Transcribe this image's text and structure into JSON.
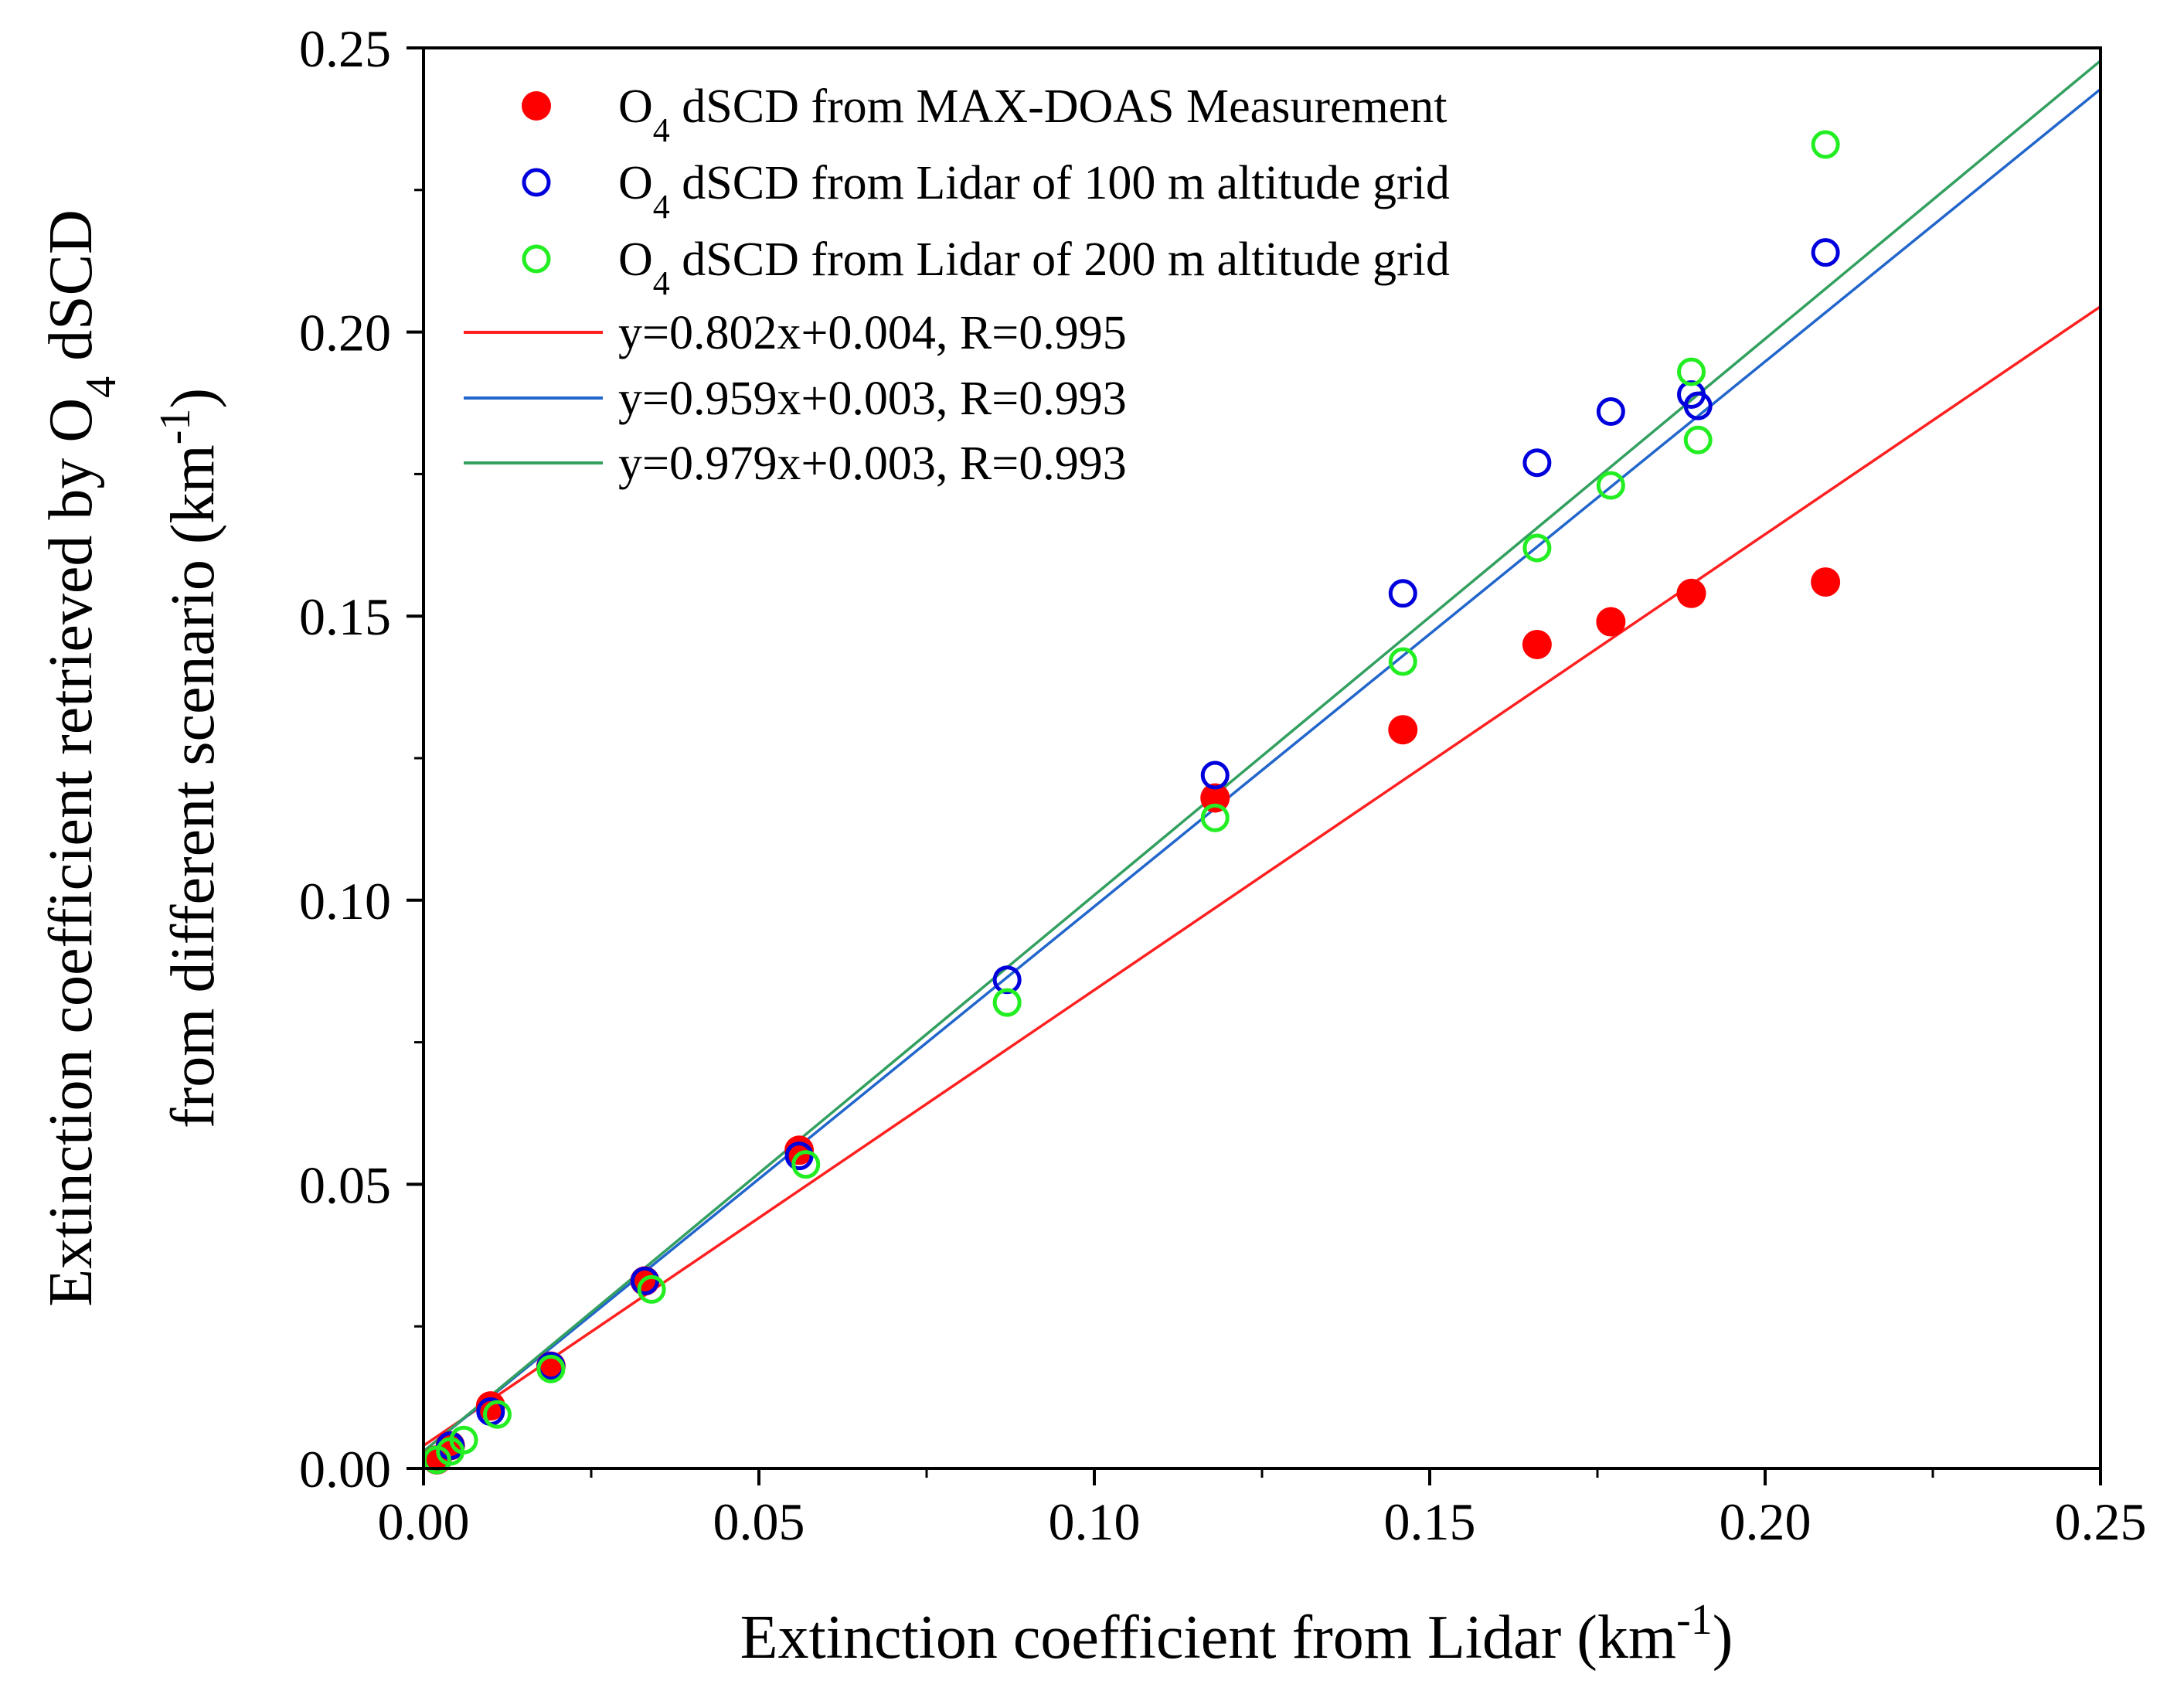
{
  "chart_data": {
    "type": "scatter",
    "title": "",
    "xlabel": {
      "main": "Extinction coefficient  from Lidar (km",
      "sup": "-1",
      "end": ")"
    },
    "ylabel": {
      "line1_main": "Extinction coefficient retrieved by O",
      "line1_sub": "4",
      "line1_end": " dSCD",
      "line2_main": "from different scenario (km",
      "line2_sup": "-1",
      "line2_end": ")"
    },
    "xlim": [
      0.0,
      0.25
    ],
    "ylim": [
      0.0,
      0.25
    ],
    "xticks": [
      "0.00",
      "0.05",
      "0.10",
      "0.15",
      "0.20",
      "0.25"
    ],
    "yticks": [
      "0.00",
      "0.05",
      "0.10",
      "0.15",
      "0.20",
      "0.25"
    ],
    "series": [
      {
        "name": "O4 dSCD from MAX-DOAS Measurement",
        "legend": {
          "prefix": "O",
          "sub": "4",
          "rest": " dSCD from MAX-DOAS Measurement"
        },
        "marker": "filled-circle",
        "color": "#ff0000",
        "x": [
          0.002,
          0.004,
          0.01,
          0.019,
          0.033,
          0.056,
          0.118,
          0.146,
          0.166,
          0.177,
          0.189,
          0.209
        ],
        "y": [
          0.0015,
          0.004,
          0.011,
          0.018,
          0.033,
          0.056,
          0.118,
          0.13,
          0.145,
          0.149,
          0.154,
          0.156
        ]
      },
      {
        "name": "O4 dSCD from Lidar of 100 m altitude grid",
        "legend": {
          "prefix": "O",
          "sub": "4",
          "rest": " dSCD from Lidar of 100 m altitude grid"
        },
        "marker": "open-circle",
        "color": "#0000dd",
        "x": [
          0.002,
          0.004,
          0.01,
          0.019,
          0.033,
          0.056,
          0.087,
          0.118,
          0.146,
          0.166,
          0.177,
          0.189,
          0.19,
          0.209
        ],
        "y": [
          0.0015,
          0.004,
          0.01,
          0.018,
          0.033,
          0.055,
          0.086,
          0.122,
          0.154,
          0.177,
          0.186,
          0.189,
          0.187,
          0.214
        ]
      },
      {
        "name": "O4 dSCD from Lidar of 200 m altitude grid",
        "legend": {
          "prefix": "O",
          "sub": "4",
          "rest": " dSCD from Lidar of 200 m altitude grid"
        },
        "marker": "open-circle",
        "color": "#22ee22",
        "x": [
          0.002,
          0.004,
          0.006,
          0.011,
          0.019,
          0.034,
          0.057,
          0.087,
          0.118,
          0.146,
          0.166,
          0.177,
          0.189,
          0.19,
          0.209
        ],
        "y": [
          0.0015,
          0.003,
          0.005,
          0.0095,
          0.0175,
          0.0315,
          0.0535,
          0.082,
          0.1145,
          0.142,
          0.162,
          0.173,
          0.193,
          0.181,
          0.233
        ]
      }
    ],
    "fits": [
      {
        "label": "y=0.802x+0.004,  R=0.995",
        "slope": 0.802,
        "intercept": 0.004,
        "color": "#ff2020"
      },
      {
        "label": "y=0.959x+0.003,  R=0.993",
        "slope": 0.959,
        "intercept": 0.003,
        "color": "#2266cc"
      },
      {
        "label": "y=0.979x+0.003,  R=0.993",
        "slope": 0.979,
        "intercept": 0.003,
        "color": "#33a060"
      }
    ],
    "legend_position": "top-left",
    "grid": false
  }
}
